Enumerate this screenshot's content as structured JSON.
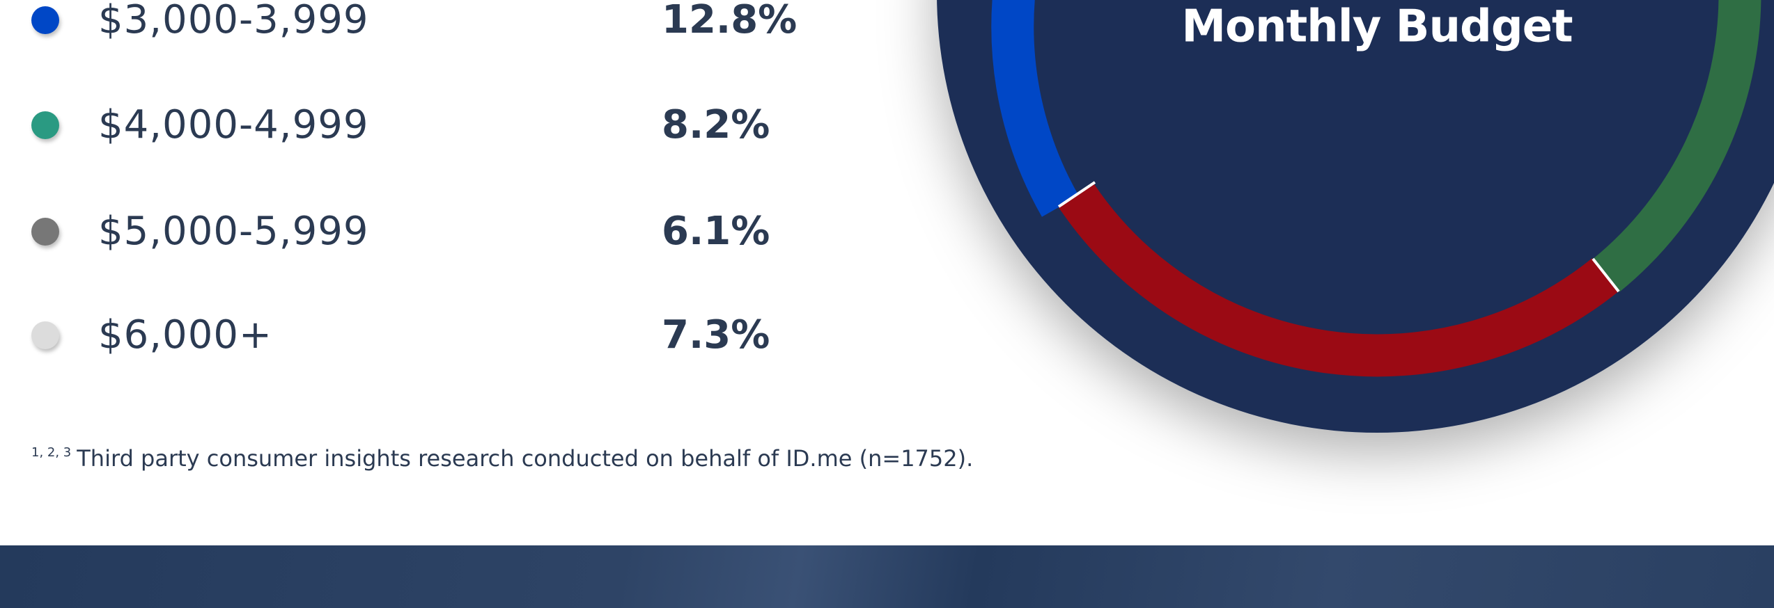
{
  "legend": {
    "items": [
      {
        "label": "$3,000-3,999",
        "percent": "12.8%"
      },
      {
        "label": "$4,000-4,999",
        "percent": "8.2%"
      },
      {
        "label": "$5,000-5,999",
        "percent": "6.1%"
      },
      {
        "label": "$6,000+",
        "percent": "7.3%"
      }
    ]
  },
  "donut": {
    "title": "Monthly Budget"
  },
  "footnote": {
    "superscript": "1, 2, 3",
    "text": "Third party consumer insights research conducted on behalf of ID.me (n=1752)."
  }
}
